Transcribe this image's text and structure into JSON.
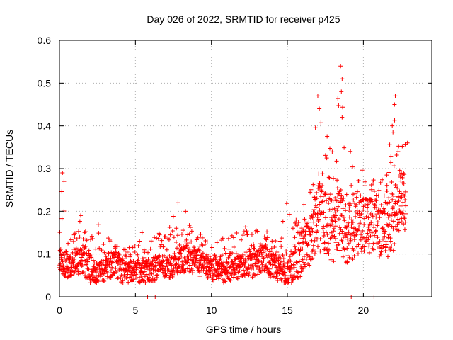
{
  "chart_data": {
    "type": "scatter",
    "title": "Day 026 of 2022, SRMTID for receiver p425",
    "xlabel": "GPS time / hours",
    "ylabel": "SRMTID / TECUs",
    "xlim": [
      0,
      24.5
    ],
    "ylim": [
      0,
      0.6
    ],
    "x_ticks": [
      0,
      5,
      10,
      15,
      20
    ],
    "x_tick_labels": [
      "0",
      "5",
      "10",
      "15",
      "20"
    ],
    "y_ticks": [
      0,
      0.1,
      0.2,
      0.3,
      0.4,
      0.5,
      0.6
    ],
    "y_tick_labels": [
      "0",
      "0.1",
      "0.2",
      "0.3",
      "0.4",
      "0.5",
      "0.6"
    ],
    "grid": true,
    "marker": "plus",
    "series": [
      {
        "name": "SRMTID",
        "color": "#ff0000",
        "note": "approximately 2000 points; envelope of typical values read from figure",
        "envelope": {
          "x": [
            0.0,
            0.5,
            1.0,
            1.5,
            2.0,
            2.5,
            3.0,
            3.5,
            4.0,
            4.5,
            5.0,
            5.5,
            6.0,
            6.5,
            7.0,
            7.5,
            8.0,
            8.5,
            9.0,
            9.5,
            10.0,
            10.5,
            11.0,
            11.5,
            12.0,
            12.5,
            13.0,
            13.5,
            14.0,
            14.5,
            15.0,
            15.5,
            16.0,
            16.5,
            17.0,
            17.5,
            18.0,
            18.5,
            19.0,
            19.5,
            20.0,
            20.5,
            21.0,
            21.5,
            22.0,
            22.5,
            22.8
          ],
          "y_mid": [
            0.09,
            0.085,
            0.09,
            0.09,
            0.08,
            0.06,
            0.07,
            0.09,
            0.075,
            0.06,
            0.065,
            0.07,
            0.06,
            0.075,
            0.07,
            0.08,
            0.09,
            0.1,
            0.09,
            0.08,
            0.075,
            0.07,
            0.065,
            0.07,
            0.08,
            0.085,
            0.09,
            0.095,
            0.08,
            0.07,
            0.06,
            0.09,
            0.12,
            0.14,
            0.2,
            0.19,
            0.17,
            0.18,
            0.16,
            0.18,
            0.19,
            0.2,
            0.17,
            0.16,
            0.2,
            0.22,
            0.25
          ],
          "y_low": [
            0.05,
            0.04,
            0.05,
            0.05,
            0.03,
            0.03,
            0.03,
            0.04,
            0.03,
            0.03,
            0.03,
            0.03,
            0.03,
            0.04,
            0.04,
            0.04,
            0.05,
            0.05,
            0.05,
            0.04,
            0.04,
            0.03,
            0.03,
            0.04,
            0.04,
            0.04,
            0.05,
            0.05,
            0.04,
            0.03,
            0.02,
            0.03,
            0.05,
            0.06,
            0.09,
            0.08,
            0.07,
            0.07,
            0.07,
            0.08,
            0.09,
            0.1,
            0.08,
            0.08,
            0.1,
            0.12,
            0.15
          ],
          "y_high": [
            0.29,
            0.16,
            0.15,
            0.19,
            0.13,
            0.18,
            0.16,
            0.13,
            0.11,
            0.12,
            0.12,
            0.16,
            0.13,
            0.15,
            0.14,
            0.19,
            0.19,
            0.17,
            0.16,
            0.14,
            0.13,
            0.14,
            0.14,
            0.15,
            0.16,
            0.17,
            0.17,
            0.16,
            0.14,
            0.14,
            0.25,
            0.23,
            0.22,
            0.25,
            0.47,
            0.41,
            0.35,
            0.54,
            0.39,
            0.28,
            0.3,
            0.28,
            0.26,
            0.3,
            0.47,
            0.4,
            0.36
          ]
        },
        "outliers": [
          {
            "x": 0.2,
            "y": 0.29
          },
          {
            "x": 0.3,
            "y": 0.27
          },
          {
            "x": 1.4,
            "y": 0.19
          },
          {
            "x": 7.8,
            "y": 0.22
          },
          {
            "x": 8.3,
            "y": 0.2
          },
          {
            "x": 17.0,
            "y": 0.47
          },
          {
            "x": 17.1,
            "y": 0.44
          },
          {
            "x": 18.5,
            "y": 0.54
          },
          {
            "x": 18.6,
            "y": 0.51
          },
          {
            "x": 18.55,
            "y": 0.48
          },
          {
            "x": 18.6,
            "y": 0.42
          },
          {
            "x": 22.1,
            "y": 0.47
          },
          {
            "x": 22.05,
            "y": 0.45
          },
          {
            "x": 21.9,
            "y": 0.4
          },
          {
            "x": 22.9,
            "y": 0.36
          }
        ],
        "zero_points": [
          5.8,
          6.3,
          19.2,
          20.7
        ]
      }
    ]
  }
}
